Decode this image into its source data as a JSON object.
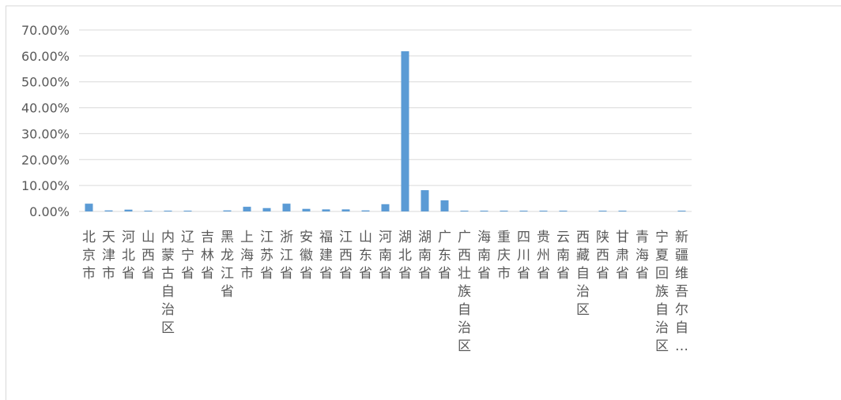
{
  "chart_data": {
    "type": "bar",
    "categories": [
      "北京市",
      "天津市",
      "河北省",
      "山西省",
      "内蒙古自治区",
      "辽宁省",
      "吉林省",
      "黑龙江省",
      "上海市",
      "江苏省",
      "浙江省",
      "安徽省",
      "福建省",
      "江西省",
      "山东省",
      "河南省",
      "湖北省",
      "湖南省",
      "广东省",
      "广西壮族自治区",
      "海南省",
      "重庆市",
      "四川省",
      "贵州省",
      "云南省",
      "西藏自治区",
      "陕西省",
      "甘肃省",
      "青海省",
      "宁夏回族自治区",
      "新疆维吾尔自…"
    ],
    "values": [
      3.0,
      0.4,
      0.7,
      0.3,
      0.3,
      0.3,
      0.0,
      0.4,
      1.8,
      1.3,
      3.0,
      1.0,
      0.8,
      0.8,
      0.4,
      2.8,
      61.8,
      8.2,
      4.3,
      0.3,
      0.3,
      0.3,
      0.3,
      0.3,
      0.3,
      0.0,
      0.3,
      0.3,
      0.0,
      0.0,
      0.3
    ],
    "y_ticks": [
      "0.00%",
      "10.00%",
      "20.00%",
      "30.00%",
      "40.00%",
      "50.00%",
      "60.00%",
      "70.00%"
    ],
    "ylim": [
      0,
      70
    ],
    "grid": true,
    "bar_color": "#5b9bd5"
  }
}
